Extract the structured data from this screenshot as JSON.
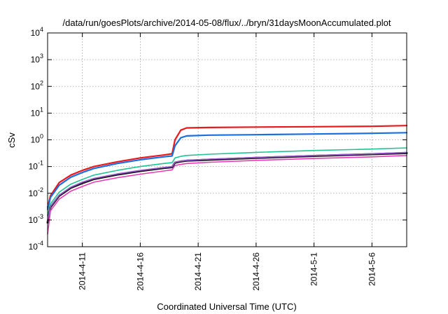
{
  "chart_data": {
    "type": "line",
    "title": "/data/run/goesPlots/archive/2014-05-08/flux/../bryn/31daysMoonAccumulated.plot",
    "xlabel": "Coordinated Universal Time (UTC)",
    "ylabel": "cSv",
    "yscale": "log",
    "ylim": [
      0.0001,
      10000
    ],
    "xlim": [
      "2014-04-08",
      "2014-05-09"
    ],
    "grid": true,
    "x_ticks": [
      "2014-4-11",
      "2014-4-16",
      "2014-4-21",
      "2014-4-26",
      "2014-5-1",
      "2014-5-6"
    ],
    "y_ticks": [
      {
        "base": "10",
        "exp": "-4",
        "value": 0.0001
      },
      {
        "base": "10",
        "exp": "-3",
        "value": 0.001
      },
      {
        "base": "10",
        "exp": "-2",
        "value": 0.01
      },
      {
        "base": "10",
        "exp": "-1",
        "value": 0.1
      },
      {
        "base": "10",
        "exp": "0",
        "value": 1
      },
      {
        "base": "10",
        "exp": "1",
        "value": 10
      },
      {
        "base": "10",
        "exp": "2",
        "value": 100
      },
      {
        "base": "10",
        "exp": "3",
        "value": 1000
      },
      {
        "base": "10",
        "exp": "4",
        "value": 10000
      }
    ],
    "x": [
      "2014-04-08",
      "2014-04-08T06:00",
      "2014-04-09",
      "2014-04-10",
      "2014-04-11",
      "2014-04-12",
      "2014-04-14",
      "2014-04-16",
      "2014-04-18",
      "2014-04-18T18:00",
      "2014-04-19",
      "2014-04-19T12:00",
      "2014-04-20",
      "2014-04-22",
      "2014-04-26",
      "2014-05-01",
      "2014-05-06",
      "2014-05-09"
    ],
    "series": [
      {
        "color": "#e8191c",
        "width": 2.2,
        "values": [
          0.003,
          0.008,
          0.025,
          0.048,
          0.072,
          0.1,
          0.15,
          0.21,
          0.27,
          0.3,
          1.0,
          2.3,
          2.8,
          2.9,
          3.0,
          3.1,
          3.2,
          3.4
        ]
      },
      {
        "color": "#1a6fe0",
        "width": 2.2,
        "values": [
          0.0025,
          0.007,
          0.02,
          0.04,
          0.06,
          0.085,
          0.13,
          0.18,
          0.23,
          0.25,
          0.6,
          1.2,
          1.4,
          1.5,
          1.55,
          1.65,
          1.75,
          1.85
        ]
      },
      {
        "color": "#22c393",
        "width": 1.6,
        "values": [
          0.0015,
          0.004,
          0.011,
          0.022,
          0.033,
          0.048,
          0.072,
          0.1,
          0.13,
          0.14,
          0.21,
          0.24,
          0.26,
          0.29,
          0.34,
          0.4,
          0.45,
          0.5
        ]
      },
      {
        "color": "#1a1a1a",
        "width": 3.0,
        "values": [
          0.0008,
          0.003,
          0.008,
          0.016,
          0.024,
          0.034,
          0.05,
          0.068,
          0.088,
          0.095,
          0.14,
          0.155,
          0.165,
          0.18,
          0.21,
          0.25,
          0.29,
          0.32
        ]
      },
      {
        "color": "#9b59d0",
        "width": 1.6,
        "values": [
          0.0009,
          0.0032,
          0.0085,
          0.017,
          0.026,
          0.036,
          0.053,
          0.072,
          0.092,
          0.1,
          0.145,
          0.16,
          0.17,
          0.19,
          0.22,
          0.26,
          0.3,
          0.34
        ]
      },
      {
        "color": "#e83bb5",
        "width": 1.6,
        "values": [
          0.0003,
          0.0022,
          0.006,
          0.012,
          0.018,
          0.026,
          0.038,
          0.052,
          0.068,
          0.075,
          0.11,
          0.12,
          0.13,
          0.145,
          0.17,
          0.2,
          0.23,
          0.26
        ]
      }
    ]
  }
}
